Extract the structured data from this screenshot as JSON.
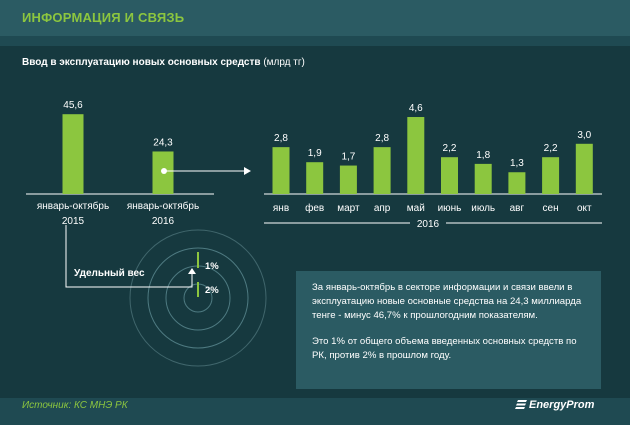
{
  "header": {
    "title": "ИНФОРМАЦИЯ И СВЯЗЬ"
  },
  "subtitle": {
    "main": "Ввод в эксплуатацию  новых основных  средств",
    "unit": "(млрд тг)"
  },
  "colors": {
    "bar": "#8cc63f",
    "axis": "#ffffff",
    "text": "#ffffff",
    "circle": "#4e7a81",
    "box": "#2b5b63"
  },
  "share": {
    "label": "Удельный вес",
    "values": [
      "1%",
      "2%"
    ]
  },
  "info": {
    "p1": "За январь-октябрь в секторе информации и связи ввели в эксплуатацию новые основные средства на 24,3 миллиарда тенге - минус 46,7%  к прошлогодним показателям.",
    "p2": "Это 1% от общего объема введенных основных средств по РК, против 2% в прошлом году."
  },
  "source": "Источник: КС МНЭ РК",
  "logo": "EnergyProm",
  "chart_data": [
    {
      "type": "bar",
      "title": "Ввод в эксплуатацию новых основных средств (млрд тг)",
      "categories": [
        [
          "январь-октябрь",
          "2015"
        ],
        [
          "январь-октябрь",
          "2016"
        ]
      ],
      "values": [
        45.6,
        24.3
      ],
      "labels": [
        "45,6",
        "24,3"
      ],
      "ylim": [
        0,
        48
      ]
    },
    {
      "type": "bar",
      "categories": [
        "янв",
        "фев",
        "март",
        "апр",
        "май",
        "июнь",
        "июль",
        "авг",
        "сен",
        "окт"
      ],
      "values": [
        2.8,
        1.9,
        1.7,
        2.8,
        4.6,
        2.2,
        1.8,
        1.3,
        2.2,
        3.0
      ],
      "labels": [
        "2,8",
        "1,9",
        "1,7",
        "2,8",
        "4,6",
        "2,2",
        "1,8",
        "1,3",
        "2,2",
        "3,0"
      ],
      "xlabel": "2016",
      "ylim": [
        0,
        4.9
      ]
    }
  ]
}
